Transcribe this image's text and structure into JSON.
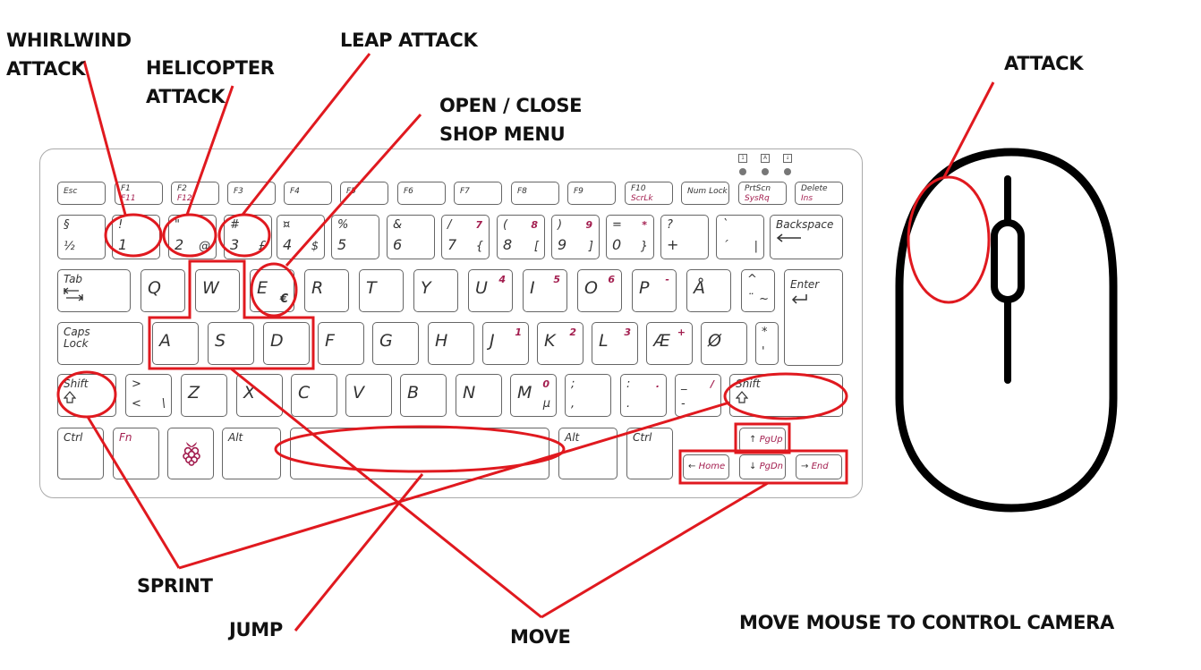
{
  "labels": {
    "whirlwind": "WHIRLWIND\nATTACK",
    "helicopter": "HELICOPTER\nATTACK",
    "leap": "LEAP ATTACK",
    "shop": "OPEN / CLOSE\nSHOP MENU",
    "attack": "ATTACK",
    "sprint": "SPRINT",
    "jump": "JUMP",
    "move": "MOVE",
    "camera": "MOVE MOUSE TO CONTROL CAMERA"
  },
  "keys": {
    "esc": "Esc",
    "f1": "F1",
    "f1_alt": "F11",
    "f2": "F2",
    "f2_alt": "F12",
    "f3": "F3",
    "f4": "F4",
    "f5": "F5",
    "f6": "F6",
    "f7": "F7",
    "f8": "F8",
    "f9": "F9",
    "f10": "F10",
    "f10_alt": "ScrLk",
    "numlock": "Num Lock",
    "prtscn": "PrtScn",
    "prtscn_alt": "SysRq",
    "delete": "Delete",
    "delete_alt": "Ins",
    "section": "§",
    "half": "½",
    "k1_top": "!",
    "k1": "1",
    "k2_top": "\"",
    "k2": "2",
    "k2_alt": "@",
    "k3_top": "#",
    "k3": "3",
    "k3_alt": "£",
    "k4_top": "¤",
    "k4": "4",
    "k4_alt": "$",
    "k5_top": "%",
    "k5": "5",
    "k6_top": "&",
    "k6": "6",
    "k7_top": "/",
    "k7": "7",
    "k7_alt": "{",
    "k7_num": "7",
    "k8_top": "(",
    "k8": "8",
    "k8_alt": "[",
    "k8_num": "8",
    "k9_top": ")",
    "k9": "9",
    "k9_alt": "]",
    "k9_num": "9",
    "k0_top": "=",
    "k0": "0",
    "k0_alt": "}",
    "k0_num": "*",
    "plus_top": "?",
    "plus": "+",
    "acute_top": "`",
    "acute": "´",
    "acute_alt": "|",
    "backspace": "Backspace",
    "tab": "Tab",
    "q": "Q",
    "w": "W",
    "e": "E",
    "e_alt": "€",
    "r": "R",
    "t": "T",
    "y": "Y",
    "u": "U",
    "u_num": "4",
    "i": "I",
    "i_num": "5",
    "o": "O",
    "o_num": "6",
    "p": "P",
    "p_num": "-",
    "aring": "Å",
    "umlaut_top": "^",
    "umlaut": "¨",
    "umlaut_alt": "~",
    "enter": "Enter",
    "caps": "Caps\nLock",
    "a": "A",
    "s": "S",
    "d": "D",
    "f": "F",
    "g": "G",
    "h": "H",
    "j": "J",
    "j_num": "1",
    "k": "K",
    "k_num": "2",
    "l": "L",
    "l_num": "3",
    "ae": "Æ",
    "ae_num": "+",
    "oslash": "Ø",
    "apos_top": "*",
    "apos": "'",
    "shift": "Shift",
    "lt_top": ">",
    "lt": "<",
    "lt_alt": "\\",
    "z": "Z",
    "x": "X",
    "c": "C",
    "v": "V",
    "b": "B",
    "n": "N",
    "m": "M",
    "m_num": "0",
    "m_alt": "µ",
    "comma_top": ";",
    "comma": ",",
    "period_top": ":",
    "period": ".",
    "period_num": ".",
    "dash_top": "_",
    "dash": "-",
    "dash_num": "/",
    "ctrl": "Ctrl",
    "fn": "Fn",
    "alt": "Alt",
    "altgr": "Alt",
    "pgup": "PgUp",
    "pgdn": "PgDn",
    "home": "Home",
    "end": "End"
  },
  "indicators": [
    "1",
    "A",
    "↓"
  ],
  "colors": {
    "highlight": "#e0191f",
    "accent": "#a31e4f",
    "key_border": "#666666",
    "text": "#111111"
  },
  "icons": [
    "raspberry-logo-icon",
    "shift-arrow-icon",
    "tab-arrow-icon",
    "enter-arrow-icon",
    "mouse-icon"
  ]
}
